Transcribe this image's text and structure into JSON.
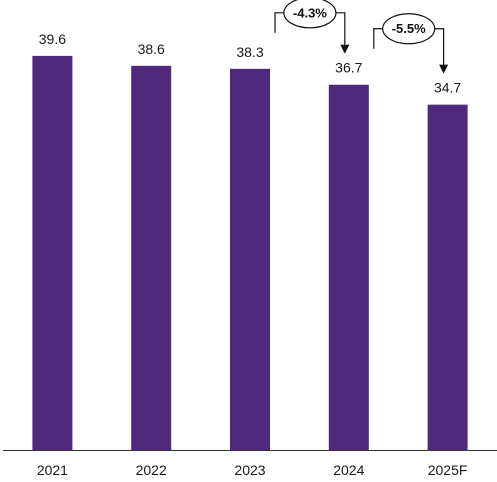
{
  "chart_data": {
    "type": "bar",
    "categories": [
      "2021",
      "2022",
      "2023",
      "2024",
      "2025F"
    ],
    "values": [
      39.6,
      38.6,
      38.3,
      36.7,
      34.7
    ],
    "value_labels": [
      "39.6",
      "38.6",
      "38.3",
      "36.7",
      "34.7"
    ],
    "ylim": [
      0,
      42.2
    ],
    "grid": false,
    "legend": "none",
    "bar_color": "#4F2A7C",
    "annotations": [
      {
        "from": "2023",
        "to": "2024",
        "text": "-4.3%"
      },
      {
        "from": "2024",
        "to": "2025F",
        "text": "-5.5%"
      }
    ]
  }
}
